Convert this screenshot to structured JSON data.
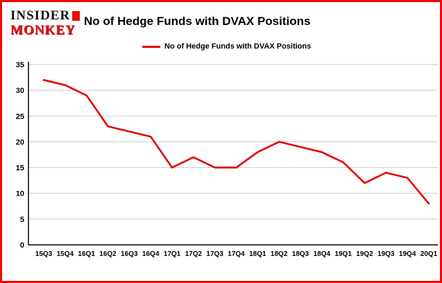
{
  "header": {
    "logo_line1": "INSIDER",
    "logo_line2": "MONKEY",
    "title": "No of Hedge Funds with DVAX Positions"
  },
  "legend": {
    "label": "No of Hedge Funds with DVAX Positions",
    "color": "#e10000"
  },
  "colors": {
    "frame_border": "#fb0205",
    "logo_red": "#e8100c",
    "gridline": "#c9c9c9",
    "axis": "#000000",
    "line": "#e10000"
  },
  "chart_data": {
    "type": "line",
    "title": "No of Hedge Funds with DVAX Positions",
    "categories": [
      "15Q3",
      "15Q4",
      "16Q1",
      "16Q2",
      "16Q3",
      "16Q4",
      "17Q1",
      "17Q2",
      "17Q3",
      "17Q4",
      "18Q1",
      "18Q2",
      "18Q3",
      "18Q4",
      "19Q1",
      "19Q2",
      "19Q3",
      "19Q4",
      "20Q1"
    ],
    "values": [
      32,
      31,
      29,
      23,
      22,
      21,
      15,
      17,
      15,
      15,
      18,
      20,
      19,
      18,
      16,
      12,
      14,
      13,
      8
    ],
    "xlabel": "",
    "ylabel": "",
    "ylim": [
      0,
      35
    ],
    "yticks": [
      0,
      5,
      10,
      15,
      20,
      25,
      30,
      35
    ],
    "grid": true,
    "legend_position": "top-left",
    "line_color": "#e10000"
  }
}
